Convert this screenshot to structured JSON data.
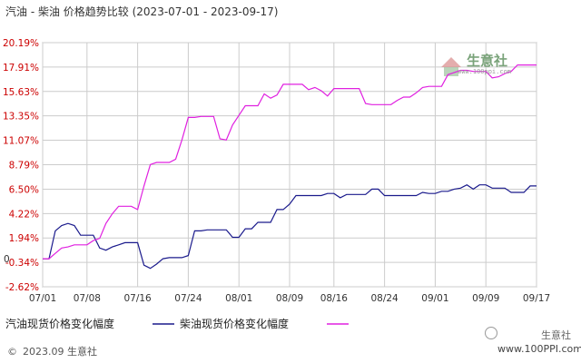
{
  "title": "汽油 - 柴油 价格趋势比较",
  "date_range": "(2023-07-01 - 2023-09-17)",
  "footer_copy": "2023.09 生意社",
  "watermark_brand": "生意社",
  "watermark_url": "www.100PPI.com",
  "logo_text": "生意社",
  "logo_sub": "www.100ppi.com",
  "colors": {
    "gasoline": "#1a1a8c",
    "diesel": "#e020e0",
    "grid": "#cccccc",
    "axis": "#999999",
    "tick_label": "#cc0000"
  },
  "chart_data": {
    "type": "line",
    "ylim": [
      -2.62,
      20.19
    ],
    "y_ticks": [
      "20.19%",
      "17.91%",
      "15.63%",
      "13.35%",
      "11.07%",
      "8.79%",
      "6.50%",
      "4.22%",
      "1.94%",
      "-0.34%",
      "-2.62%"
    ],
    "y_tick_values": [
      20.19,
      17.91,
      15.63,
      13.35,
      11.07,
      8.79,
      6.5,
      4.22,
      1.94,
      -0.34,
      -2.62
    ],
    "zero_label": "0",
    "x_ticks": [
      "07/01",
      "07/08",
      "07/16",
      "07/24",
      "08/01",
      "08/09",
      "08/16",
      "08/24",
      "09/01",
      "09/09",
      "09/17"
    ],
    "x_tick_days": [
      0,
      7,
      15,
      23,
      31,
      39,
      46,
      54,
      62,
      70,
      78
    ],
    "x_max_day": 78,
    "grid": true,
    "legend_position": "bottom-left",
    "series": [
      {
        "name": "汽油现货价格变化幅度",
        "x": [
          0,
          1,
          2,
          3,
          4,
          5,
          6,
          7,
          8,
          9,
          10,
          11,
          12,
          13,
          14,
          15,
          16,
          17,
          18,
          19,
          20,
          21,
          22,
          23,
          24,
          25,
          26,
          27,
          28,
          29,
          30,
          31,
          32,
          33,
          34,
          35,
          36,
          37,
          38,
          39,
          40,
          41,
          42,
          43,
          44,
          45,
          46,
          47,
          48,
          49,
          50,
          51,
          52,
          53,
          54,
          55,
          56,
          57,
          58,
          59,
          60,
          61,
          62,
          63,
          64,
          65,
          66,
          67,
          68,
          69,
          70,
          71,
          72,
          73,
          74,
          75,
          76,
          77,
          78
        ],
        "values": [
          0.0,
          0.0,
          2.6,
          3.1,
          3.3,
          3.1,
          2.2,
          2.2,
          2.2,
          1.0,
          0.8,
          1.1,
          1.3,
          1.5,
          1.5,
          1.5,
          -0.6,
          -0.9,
          -0.5,
          0.0,
          0.1,
          0.1,
          0.1,
          0.3,
          2.6,
          2.6,
          2.7,
          2.7,
          2.7,
          2.7,
          2.0,
          2.0,
          2.8,
          2.8,
          3.4,
          3.4,
          3.4,
          4.6,
          4.6,
          5.1,
          5.9,
          5.9,
          5.9,
          5.9,
          5.9,
          6.1,
          6.1,
          5.7,
          6.0,
          6.0,
          6.0,
          6.0,
          6.5,
          6.5,
          5.9,
          5.9,
          5.9,
          5.9,
          5.9,
          5.9,
          6.2,
          6.1,
          6.1,
          6.3,
          6.3,
          6.5,
          6.6,
          6.9,
          6.5,
          6.9,
          6.9,
          6.6,
          6.6,
          6.6,
          6.2,
          6.2,
          6.2,
          6.8,
          6.8
        ]
      },
      {
        "name": "柴油现货价格变化幅度",
        "x": [
          0,
          1,
          2,
          3,
          4,
          5,
          6,
          7,
          8,
          9,
          10,
          11,
          12,
          13,
          14,
          15,
          16,
          17,
          18,
          19,
          20,
          21,
          22,
          23,
          24,
          25,
          26,
          27,
          28,
          29,
          30,
          31,
          32,
          33,
          34,
          35,
          36,
          37,
          38,
          39,
          40,
          41,
          42,
          43,
          44,
          45,
          46,
          47,
          48,
          49,
          50,
          51,
          52,
          53,
          54,
          55,
          56,
          57,
          58,
          59,
          60,
          61,
          62,
          63,
          64,
          65,
          66,
          67,
          68,
          69,
          70,
          71,
          72,
          73,
          74,
          75,
          76,
          77,
          78
        ],
        "values": [
          0.0,
          0.0,
          0.5,
          1.0,
          1.1,
          1.3,
          1.3,
          1.3,
          1.7,
          1.9,
          3.3,
          4.2,
          4.9,
          4.9,
          4.9,
          4.6,
          6.8,
          8.8,
          9.0,
          9.0,
          9.0,
          9.3,
          11.1,
          13.2,
          13.2,
          13.3,
          13.3,
          13.3,
          11.2,
          11.1,
          12.5,
          13.4,
          14.3,
          14.3,
          14.3,
          15.4,
          15.0,
          15.3,
          16.3,
          16.3,
          16.3,
          16.3,
          15.8,
          16.0,
          15.7,
          15.2,
          15.9,
          15.9,
          15.9,
          15.9,
          15.9,
          14.5,
          14.4,
          14.4,
          14.4,
          14.4,
          14.8,
          15.1,
          15.1,
          15.5,
          16.0,
          16.1,
          16.1,
          16.1,
          17.2,
          17.4,
          17.6,
          17.6,
          17.5,
          17.5,
          17.5,
          16.9,
          17.0,
          17.3,
          17.5,
          18.1,
          18.1,
          18.1,
          18.1
        ]
      }
    ]
  }
}
